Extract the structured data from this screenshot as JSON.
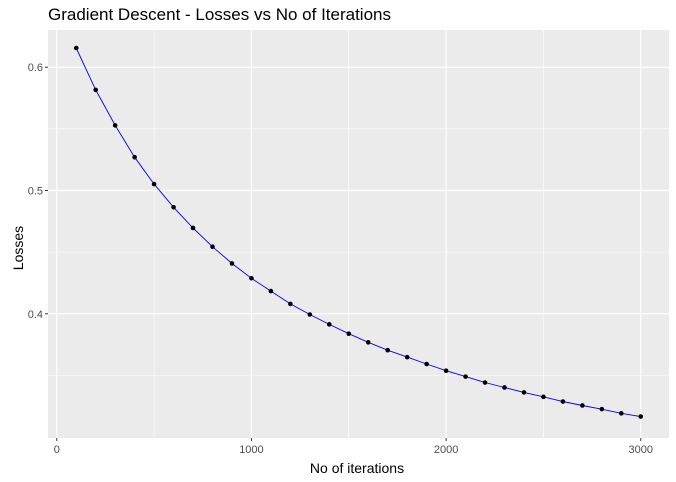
{
  "chart_data": {
    "type": "line",
    "title": "Gradient Descent - Losses vs No of Iterations",
    "xlabel": "No of iterations",
    "ylabel": "Losses",
    "x": [
      100,
      200,
      300,
      400,
      500,
      600,
      700,
      800,
      900,
      1000,
      1100,
      1200,
      1300,
      1400,
      1500,
      1600,
      1700,
      1800,
      1900,
      2000,
      2100,
      2200,
      2300,
      2400,
      2500,
      2600,
      2700,
      2800,
      2900,
      3000
    ],
    "series": [
      {
        "name": "Losses",
        "values": [
          0.6156,
          0.5816,
          0.5528,
          0.527,
          0.5052,
          0.4864,
          0.4696,
          0.4544,
          0.4408,
          0.4288,
          0.4184,
          0.408,
          0.3994,
          0.3914,
          0.3838,
          0.3768,
          0.3704,
          0.3648,
          0.3592,
          0.3538,
          0.349,
          0.3442,
          0.3402,
          0.3362,
          0.3326,
          0.3288,
          0.3256,
          0.3226,
          0.3192,
          0.3166
        ],
        "line_color": "#0000ff",
        "point_color": "#000000"
      }
    ],
    "xticks": [
      0,
      1000,
      2000,
      3000
    ],
    "xtick_labels": [
      "0",
      "1000",
      "2000",
      "3000"
    ],
    "yticks": [
      0.4,
      0.5,
      0.6
    ],
    "ytick_labels": [
      "0.4",
      "0.5",
      "0.6"
    ],
    "xlim": [
      -45,
      3145
    ],
    "ylim": [
      0.2992,
      0.6302
    ],
    "grid": true,
    "legend": null,
    "panel_background": "#ebebeb",
    "grid_color": "#ffffff"
  }
}
